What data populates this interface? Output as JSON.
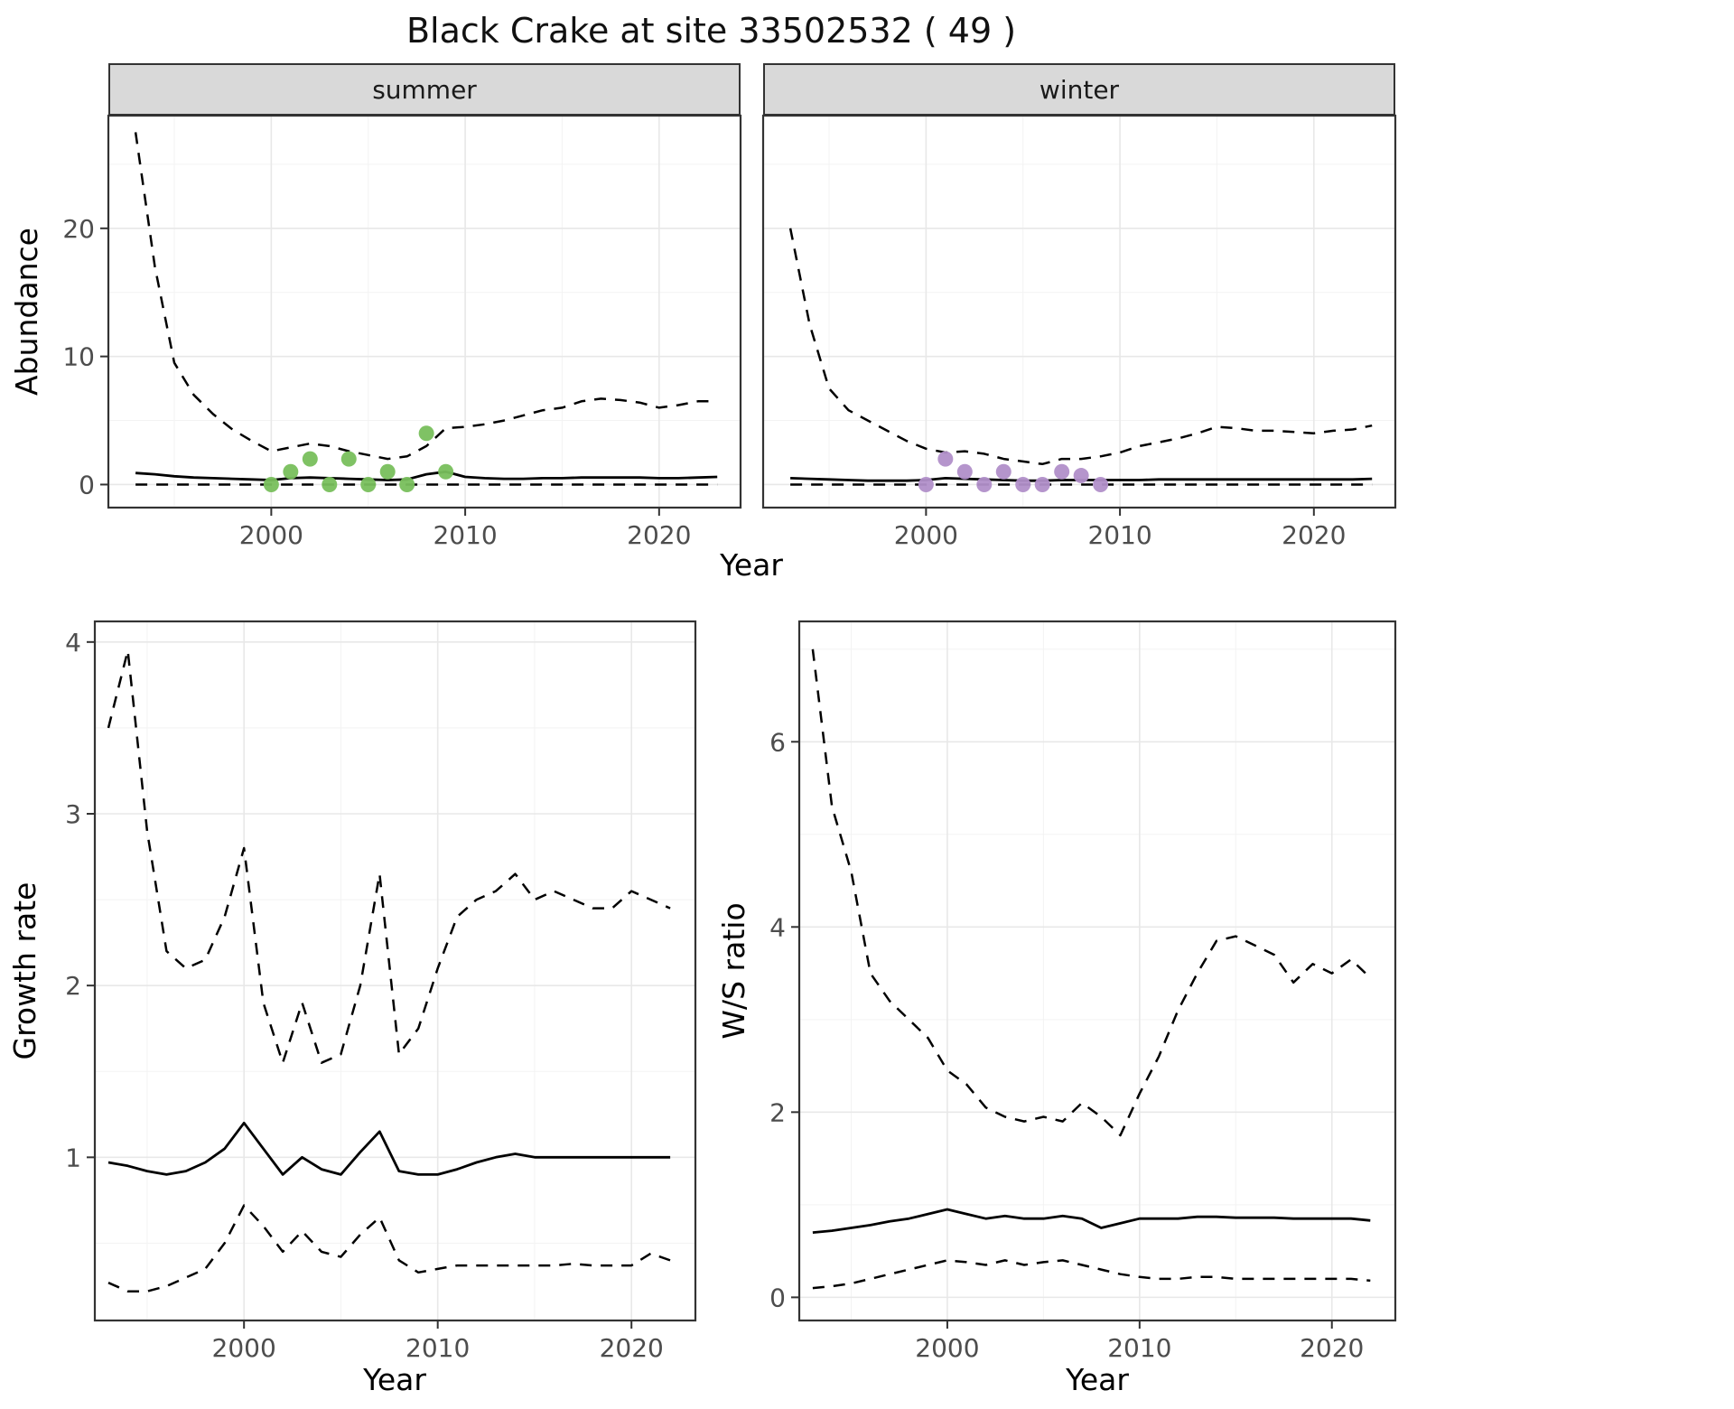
{
  "title": "Black Crake at site 33502532 ( 49 )",
  "labels": {
    "abundance_axis": "Abundance",
    "growth_axis": "Growth rate",
    "ws_axis": "W/S ratio",
    "year_axis_top": "Year",
    "year_axis_growth": "Year",
    "year_axis_ws": "Year",
    "facet_summer": "summer",
    "facet_winter": "winter"
  },
  "colors": {
    "summer_points": "#78bf5c",
    "winter_points": "#b18fc9",
    "line": "#000000",
    "strip_background": "#d9d9d9",
    "panel_border": "#333333",
    "grid_major": "#e8e8e8",
    "grid_minor": "#f3f3f3",
    "tick_text": "#4d4d4d"
  },
  "chart_data": [
    {
      "id": "abundance-summer",
      "type": "line",
      "facet": "summer",
      "xlabel": "Year",
      "ylabel": "Abundance",
      "xlim": [
        1991.6,
        2024.2
      ],
      "ylim": [
        -1.8,
        28.8
      ],
      "xticks": [
        2000,
        2010,
        2020
      ],
      "xticks_minor": [
        1995,
        2005,
        2015
      ],
      "yticks": [
        0,
        10,
        20
      ],
      "yticks_minor": [
        5,
        15,
        25
      ],
      "x": [
        1993,
        1994,
        1995,
        1996,
        1997,
        1998,
        1999,
        2000,
        2001,
        2002,
        2003,
        2004,
        2005,
        2006,
        2007,
        2008,
        2009,
        2010,
        2011,
        2012,
        2013,
        2014,
        2015,
        2016,
        2017,
        2018,
        2019,
        2020,
        2021,
        2022,
        2023
      ],
      "series": [
        {
          "name": "upper-ci",
          "style": "dashed",
          "values": [
            27.5,
            17.0,
            9.5,
            7.0,
            5.5,
            4.3,
            3.4,
            2.6,
            2.9,
            3.2,
            3.0,
            2.6,
            2.3,
            2.0,
            2.2,
            3.0,
            4.4,
            4.5,
            4.7,
            5.0,
            5.4,
            5.8,
            6.0,
            6.5,
            6.7,
            6.6,
            6.4,
            6.0,
            6.2,
            6.5,
            6.5
          ]
        },
        {
          "name": "median",
          "style": "solid",
          "values": [
            0.9,
            0.8,
            0.65,
            0.55,
            0.5,
            0.45,
            0.4,
            0.35,
            0.5,
            0.55,
            0.5,
            0.45,
            0.4,
            0.35,
            0.4,
            0.8,
            1.0,
            0.6,
            0.5,
            0.45,
            0.45,
            0.5,
            0.5,
            0.55,
            0.55,
            0.55,
            0.55,
            0.5,
            0.5,
            0.55,
            0.6
          ]
        },
        {
          "name": "lower-ci",
          "style": "dashed",
          "values": [
            0,
            0,
            0,
            0,
            0,
            0,
            0,
            0,
            0,
            0,
            0,
            0,
            0,
            0,
            0,
            0,
            0,
            0,
            0,
            0,
            0,
            0,
            0,
            0,
            0,
            0,
            0,
            0,
            0,
            0,
            0
          ]
        }
      ],
      "points": {
        "name": "observed-counts-summer",
        "color": "#78bf5c",
        "x": [
          2000,
          2001,
          2002,
          2003,
          2004,
          2005,
          2006,
          2007,
          2008,
          2009
        ],
        "y": [
          0,
          1,
          2,
          0,
          2,
          0,
          1,
          0,
          4,
          1
        ]
      }
    },
    {
      "id": "abundance-winter",
      "type": "line",
      "facet": "winter",
      "xlabel": "Year",
      "ylabel": "Abundance",
      "xlim": [
        1991.6,
        2024.2
      ],
      "ylim": [
        -1.8,
        28.8
      ],
      "xticks": [
        2000,
        2010,
        2020
      ],
      "xticks_minor": [
        1995,
        2005,
        2015
      ],
      "yticks": [
        0,
        10,
        20
      ],
      "yticks_minor": [
        5,
        15,
        25
      ],
      "x": [
        1993,
        1994,
        1995,
        1996,
        1997,
        1998,
        1999,
        2000,
        2001,
        2002,
        2003,
        2004,
        2005,
        2006,
        2007,
        2008,
        2009,
        2010,
        2011,
        2012,
        2013,
        2014,
        2015,
        2016,
        2017,
        2018,
        2019,
        2020,
        2021,
        2022,
        2023
      ],
      "series": [
        {
          "name": "upper-ci",
          "style": "dashed",
          "values": [
            20.0,
            12.5,
            7.5,
            5.8,
            5.0,
            4.2,
            3.4,
            2.8,
            2.5,
            2.6,
            2.4,
            2.0,
            1.8,
            1.6,
            2.0,
            2.0,
            2.2,
            2.5,
            3.0,
            3.3,
            3.6,
            4.0,
            4.5,
            4.4,
            4.2,
            4.2,
            4.1,
            4.0,
            4.2,
            4.3,
            4.6
          ]
        },
        {
          "name": "median",
          "style": "solid",
          "values": [
            0.5,
            0.45,
            0.4,
            0.35,
            0.3,
            0.3,
            0.3,
            0.35,
            0.5,
            0.45,
            0.4,
            0.35,
            0.3,
            0.3,
            0.35,
            0.35,
            0.35,
            0.35,
            0.35,
            0.4,
            0.4,
            0.4,
            0.4,
            0.4,
            0.4,
            0.4,
            0.4,
            0.4,
            0.4,
            0.4,
            0.45
          ]
        },
        {
          "name": "lower-ci",
          "style": "dashed",
          "values": [
            0,
            0,
            0,
            0,
            0,
            0,
            0,
            0,
            0,
            0,
            0,
            0,
            0,
            0,
            0,
            0,
            0,
            0,
            0,
            0,
            0,
            0,
            0,
            0,
            0,
            0,
            0,
            0,
            0,
            0,
            0
          ]
        }
      ],
      "points": {
        "name": "observed-counts-winter",
        "color": "#b18fc9",
        "x": [
          2000,
          2001,
          2002,
          2003,
          2004,
          2005,
          2006,
          2007,
          2008,
          2009
        ],
        "y": [
          0,
          2,
          1,
          0,
          1,
          0,
          0,
          1,
          0.7,
          0
        ]
      }
    },
    {
      "id": "growth-rate",
      "type": "line",
      "xlabel": "Year",
      "ylabel": "Growth rate",
      "xlim": [
        1992.3,
        2023.3
      ],
      "ylim": [
        0.05,
        4.12
      ],
      "xticks": [
        2000,
        2010,
        2020
      ],
      "xticks_minor": [
        1995,
        2005,
        2015
      ],
      "yticks": [
        1,
        2,
        3,
        4
      ],
      "yticks_minor": [
        0.5,
        1.5,
        2.5,
        3.5
      ],
      "x": [
        1993,
        1994,
        1995,
        1996,
        1997,
        1998,
        1999,
        2000,
        2001,
        2002,
        2003,
        2004,
        2005,
        2006,
        2007,
        2008,
        2009,
        2010,
        2011,
        2012,
        2013,
        2014,
        2015,
        2016,
        2017,
        2018,
        2019,
        2020,
        2021,
        2022
      ],
      "series": [
        {
          "name": "upper-ci",
          "style": "dashed",
          "values": [
            3.5,
            3.95,
            2.9,
            2.2,
            2.1,
            2.15,
            2.4,
            2.8,
            1.9,
            1.55,
            1.9,
            1.55,
            1.6,
            2.0,
            2.65,
            1.6,
            1.75,
            2.1,
            2.4,
            2.5,
            2.55,
            2.65,
            2.5,
            2.55,
            2.5,
            2.45,
            2.45,
            2.55,
            2.5,
            2.45
          ]
        },
        {
          "name": "median",
          "style": "solid",
          "values": [
            0.97,
            0.95,
            0.92,
            0.9,
            0.92,
            0.97,
            1.05,
            1.2,
            1.05,
            0.9,
            1.0,
            0.93,
            0.9,
            1.03,
            1.15,
            0.92,
            0.9,
            0.9,
            0.93,
            0.97,
            1.0,
            1.02,
            1.0,
            1.0,
            1.0,
            1.0,
            1.0,
            1.0,
            1.0,
            1.0
          ]
        },
        {
          "name": "lower-ci",
          "style": "dashed",
          "values": [
            0.27,
            0.22,
            0.22,
            0.25,
            0.3,
            0.35,
            0.5,
            0.72,
            0.6,
            0.45,
            0.57,
            0.45,
            0.42,
            0.55,
            0.65,
            0.4,
            0.33,
            0.35,
            0.37,
            0.37,
            0.37,
            0.37,
            0.37,
            0.37,
            0.38,
            0.37,
            0.37,
            0.37,
            0.44,
            0.4
          ]
        }
      ]
    },
    {
      "id": "ws-ratio",
      "type": "line",
      "xlabel": "Year",
      "ylabel": "W/S ratio",
      "xlim": [
        1992.3,
        2023.3
      ],
      "ylim": [
        -0.25,
        7.3
      ],
      "xticks": [
        2000,
        2010,
        2020
      ],
      "xticks_minor": [
        1995,
        2005,
        2015
      ],
      "yticks": [
        0,
        2,
        4,
        6
      ],
      "yticks_minor": [
        1,
        3,
        5,
        7
      ],
      "x": [
        1993,
        1994,
        1995,
        1996,
        1997,
        1998,
        1999,
        2000,
        2001,
        2002,
        2003,
        2004,
        2005,
        2006,
        2007,
        2008,
        2009,
        2010,
        2011,
        2012,
        2013,
        2014,
        2015,
        2016,
        2017,
        2018,
        2019,
        2020,
        2021,
        2022
      ],
      "series": [
        {
          "name": "upper-ci",
          "style": "dashed",
          "values": [
            7.0,
            5.3,
            4.6,
            3.5,
            3.2,
            3.0,
            2.8,
            2.45,
            2.3,
            2.05,
            1.95,
            1.9,
            1.95,
            1.9,
            2.1,
            1.95,
            1.75,
            2.2,
            2.6,
            3.1,
            3.5,
            3.85,
            3.9,
            3.8,
            3.7,
            3.4,
            3.6,
            3.5,
            3.65,
            3.45
          ]
        },
        {
          "name": "median",
          "style": "solid",
          "values": [
            0.7,
            0.72,
            0.75,
            0.78,
            0.82,
            0.85,
            0.9,
            0.95,
            0.9,
            0.85,
            0.88,
            0.85,
            0.85,
            0.88,
            0.85,
            0.75,
            0.8,
            0.85,
            0.85,
            0.85,
            0.87,
            0.87,
            0.86,
            0.86,
            0.86,
            0.85,
            0.85,
            0.85,
            0.85,
            0.83
          ]
        },
        {
          "name": "lower-ci",
          "style": "dashed",
          "values": [
            0.1,
            0.12,
            0.15,
            0.2,
            0.25,
            0.3,
            0.35,
            0.4,
            0.38,
            0.35,
            0.4,
            0.35,
            0.38,
            0.4,
            0.35,
            0.3,
            0.25,
            0.22,
            0.2,
            0.2,
            0.22,
            0.22,
            0.2,
            0.2,
            0.2,
            0.2,
            0.2,
            0.2,
            0.2,
            0.18
          ]
        }
      ]
    }
  ]
}
